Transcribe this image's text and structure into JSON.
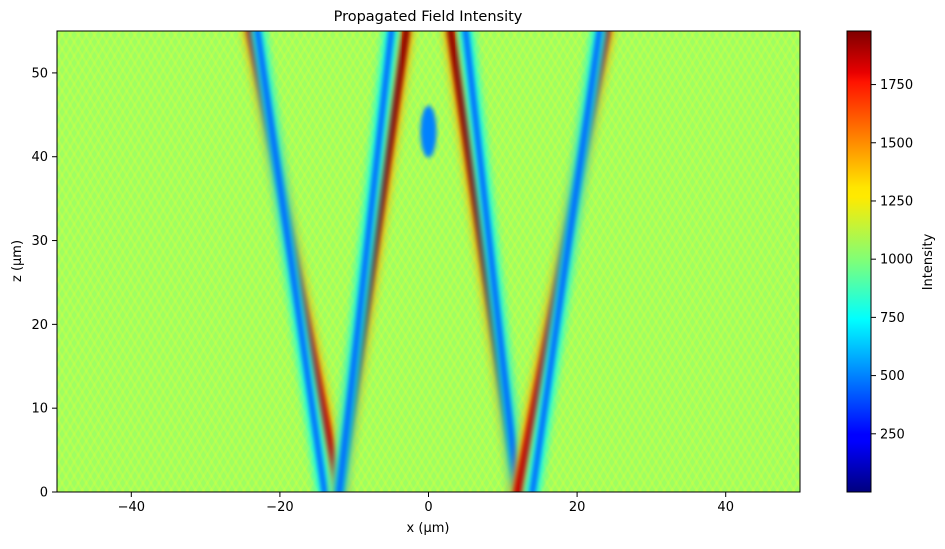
{
  "chart_data": {
    "type": "heatmap",
    "title": "Propagated Field Intensity",
    "xlabel": "x (µm)",
    "ylabel": "z (µm)",
    "xlim": [
      -50,
      50
    ],
    "ylim": [
      0,
      55
    ],
    "x_ticks": [
      -40,
      -20,
      0,
      20,
      40
    ],
    "x_tick_labels": [
      "−40",
      "−20",
      "0",
      "20",
      "40"
    ],
    "y_ticks": [
      0,
      10,
      20,
      30,
      40,
      50
    ],
    "y_tick_labels": [
      "0",
      "10",
      "20",
      "30",
      "40",
      "50"
    ],
    "colormap": "jet",
    "colorbar": {
      "label": "Intensity",
      "range": [
        0,
        1980
      ],
      "ticks": [
        250,
        500,
        750,
        1000,
        1250,
        1500,
        1750
      ],
      "tick_labels": [
        "250",
        "500",
        "750",
        "1000",
        "1250",
        "1500",
        "1750"
      ]
    },
    "background_intensity": 1050,
    "features": [
      {
        "name": "outer-left-bright-lobe",
        "x_at_z0": -12,
        "x_at_z55": -24,
        "peak_intensity": 1850
      },
      {
        "name": "outer-left-dark-lobe",
        "x_at_z0": -14,
        "x_at_z55": -23,
        "peak_intensity": 450
      },
      {
        "name": "inner-left-bright-lobe",
        "x_at_z0": -12,
        "x_at_z55": -3,
        "peak_intensity": 1950
      },
      {
        "name": "inner-left-dark-lobe",
        "x_at_z0": -12,
        "x_at_z55": -5,
        "peak_intensity": 450
      },
      {
        "name": "inner-right-bright-lobe",
        "x_at_z0": 12,
        "x_at_z55": 3,
        "peak_intensity": 1950
      },
      {
        "name": "inner-right-dark-lobe",
        "x_at_z0": 12,
        "x_at_z55": 5,
        "peak_intensity": 450
      },
      {
        "name": "outer-right-bright-lobe",
        "x_at_z0": 12,
        "x_at_z55": 24,
        "peak_intensity": 1850
      },
      {
        "name": "outer-right-dark-lobe",
        "x_at_z0": 14,
        "x_at_z55": 23,
        "peak_intensity": 450
      },
      {
        "name": "axial-dark-spot",
        "x": 0,
        "z": 43,
        "peak_intensity": 500
      }
    ]
  }
}
